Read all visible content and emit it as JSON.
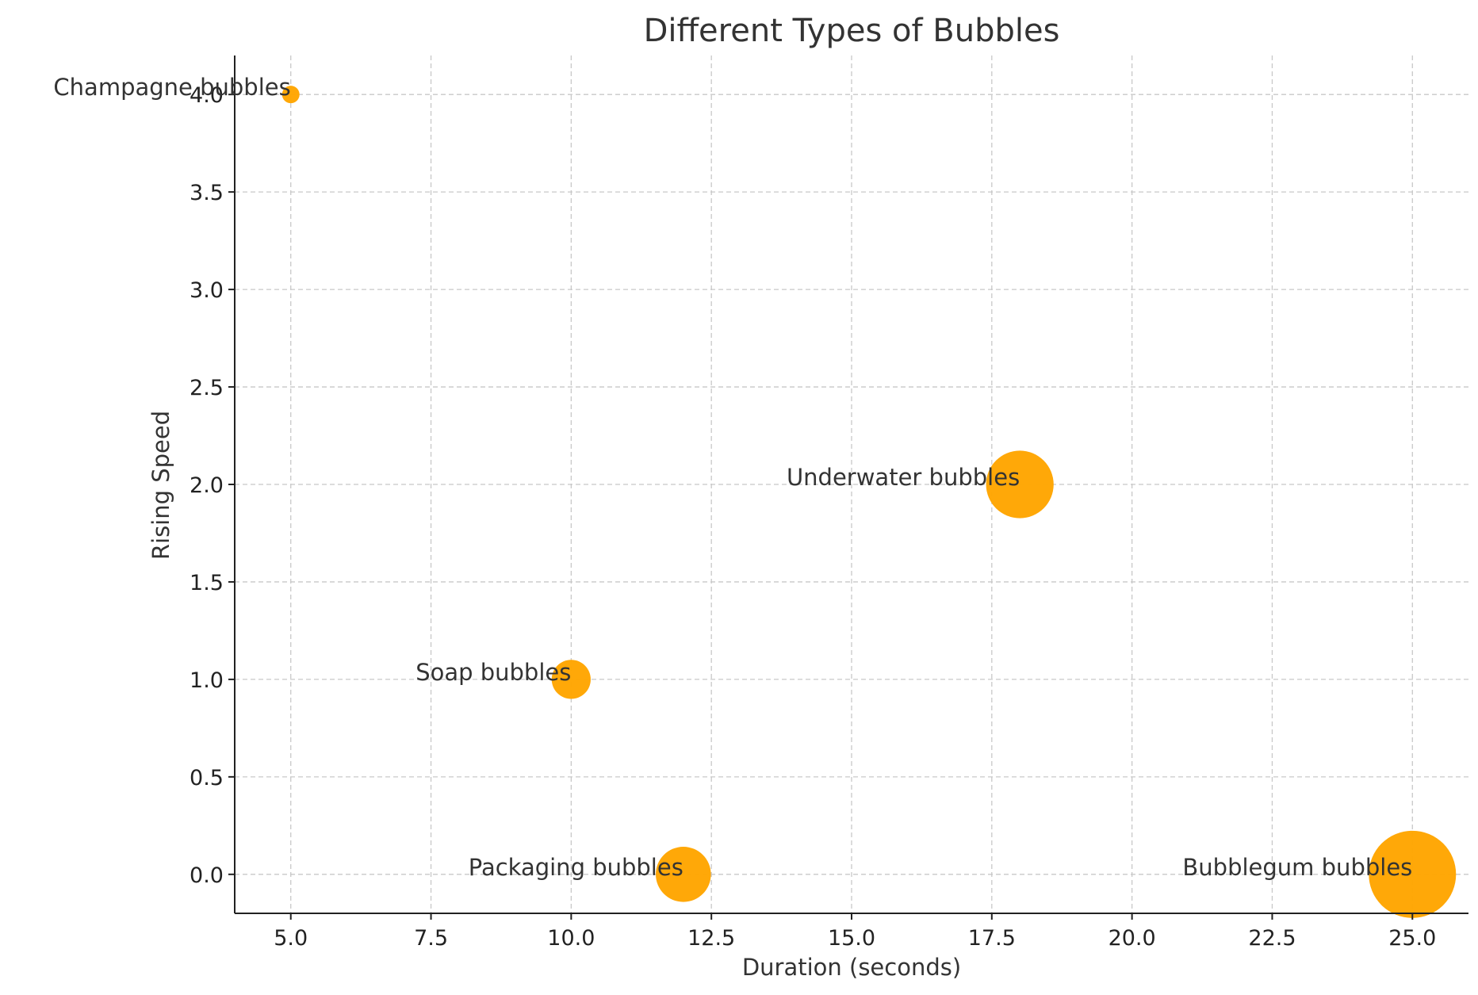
{
  "chart_data": {
    "type": "scatter",
    "title": "Different Types of Bubbles",
    "xlabel": "Duration (seconds)",
    "ylabel": "Rising Speed",
    "xlim": [
      4.0,
      26.0
    ],
    "ylim": [
      -0.2,
      4.2
    ],
    "xticks": [
      5.0,
      7.5,
      10.0,
      12.5,
      15.0,
      17.5,
      20.0,
      22.5,
      25.0
    ],
    "yticks": [
      0.0,
      0.5,
      1.0,
      1.5,
      2.0,
      2.5,
      3.0,
      3.5,
      4.0
    ],
    "x_tick_labels": [
      "5.0",
      "7.5",
      "10.0",
      "12.5",
      "15.0",
      "17.5",
      "20.0",
      "22.5",
      "25.0"
    ],
    "y_tick_labels": [
      "0.0",
      "0.5",
      "1.0",
      "1.5",
      "2.0",
      "2.5",
      "3.0",
      "3.5",
      "4.0"
    ],
    "grid": true,
    "marker_color": "#FFA500",
    "points": [
      {
        "label": "Champagne bubbles",
        "x": 5,
        "y": 4.0,
        "size": 1
      },
      {
        "label": "Soap bubbles",
        "x": 10,
        "y": 1.0,
        "size": 5
      },
      {
        "label": "Packaging bubbles",
        "x": 12,
        "y": 0.0,
        "size": 10
      },
      {
        "label": "Underwater bubbles",
        "x": 18,
        "y": 2.0,
        "size": 15
      },
      {
        "label": "Bubblegum bubbles",
        "x": 25,
        "y": 0.0,
        "size": 25
      }
    ]
  }
}
